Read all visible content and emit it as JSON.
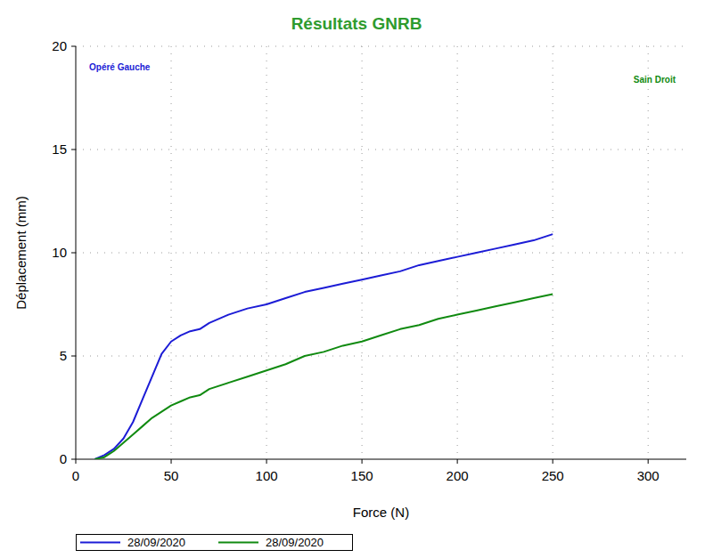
{
  "chart_data": {
    "type": "line",
    "title": "Résultats GNRB",
    "x_label": "Force (N)",
    "y_label": "Déplacement (mm)",
    "annotations": [
      "Opéré Gauche",
      "Sain Droit"
    ],
    "x": [
      10,
      15,
      20,
      25,
      30,
      35,
      40,
      45,
      50,
      55,
      60,
      65,
      70,
      80,
      90,
      100,
      110,
      120,
      130,
      140,
      150,
      160,
      170,
      180,
      190,
      200,
      210,
      220,
      230,
      240,
      250
    ],
    "series": [
      {
        "name": "28/09/2020",
        "color": "#1c1cd6",
        "values": [
          0,
          0.2,
          0.5,
          1.0,
          1.8,
          2.9,
          4.0,
          5.1,
          5.7,
          6.0,
          6.2,
          6.3,
          6.6,
          7.0,
          7.3,
          7.5,
          7.8,
          8.1,
          8.3,
          8.5,
          8.7,
          8.9,
          9.1,
          9.4,
          9.6,
          9.8,
          10.0,
          10.2,
          10.4,
          10.6,
          10.9
        ]
      },
      {
        "name": "28/09/2020",
        "color": "#108a10",
        "values": [
          0,
          0.1,
          0.4,
          0.8,
          1.2,
          1.6,
          2.0,
          2.3,
          2.6,
          2.8,
          3.0,
          3.1,
          3.4,
          3.7,
          4.0,
          4.3,
          4.6,
          5.0,
          5.2,
          5.5,
          5.7,
          6.0,
          6.3,
          6.5,
          6.8,
          7.0,
          7.2,
          7.4,
          7.6,
          7.8,
          8.0
        ]
      }
    ],
    "xlim": [
      0,
      320
    ],
    "xticks": [
      0,
      50,
      100,
      150,
      200,
      250,
      300
    ],
    "ylim": [
      0,
      20
    ],
    "yticks": [
      0,
      5,
      10,
      15,
      20
    ],
    "grid": true,
    "legend": "bottom"
  }
}
